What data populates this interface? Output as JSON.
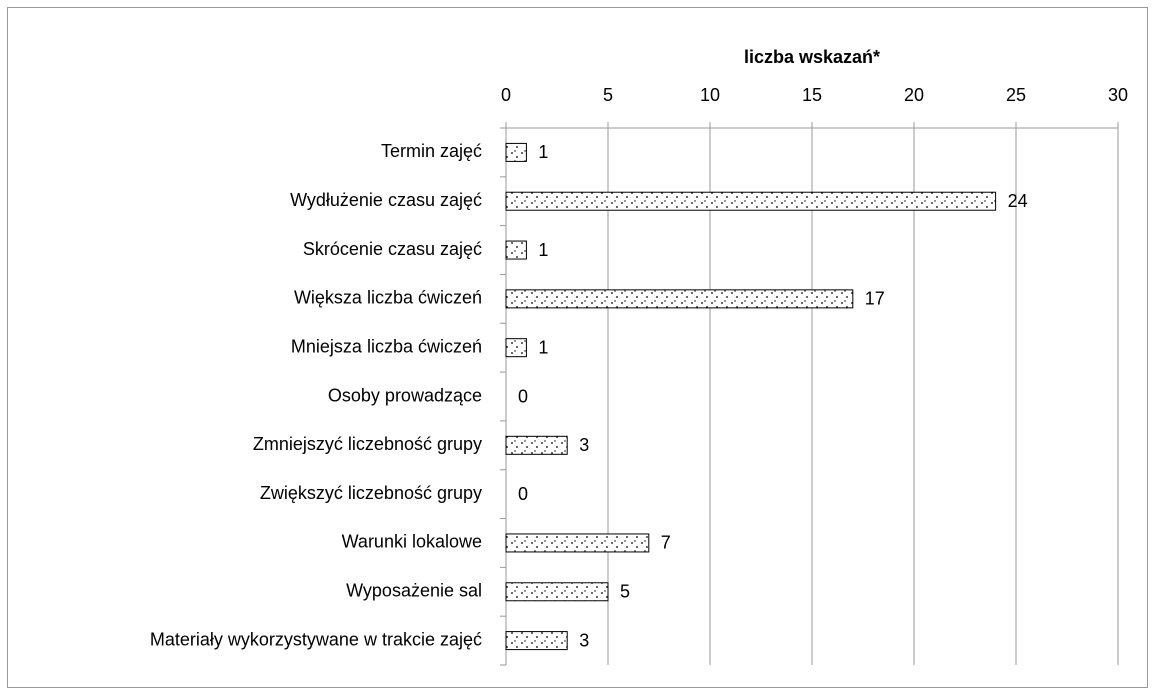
{
  "chart_data": {
    "type": "barh",
    "x_label": "liczba wskazań*",
    "categories": [
      "Termin zajęć",
      "Wydłużenie czasu zajęć",
      "Skrócenie czasu zajęć",
      "Większa liczba ćwiczeń",
      "Mniejsza liczba ćwiczeń",
      "Osoby prowadzące",
      "Zmniejszyć liczebność grupy",
      "Zwiększyć liczebność grupy",
      "Warunki lokalowe",
      "Wyposażenie sal",
      "Materiały wykorzystywane w trakcie zajęć"
    ],
    "values": [
      1,
      24,
      1,
      17,
      1,
      0,
      3,
      0,
      7,
      5,
      3
    ],
    "color": "#ffffff",
    "xlim": [
      0,
      30
    ],
    "xticks": [
      0,
      5,
      10,
      15,
      20,
      25,
      30
    ],
    "grid": true
  }
}
